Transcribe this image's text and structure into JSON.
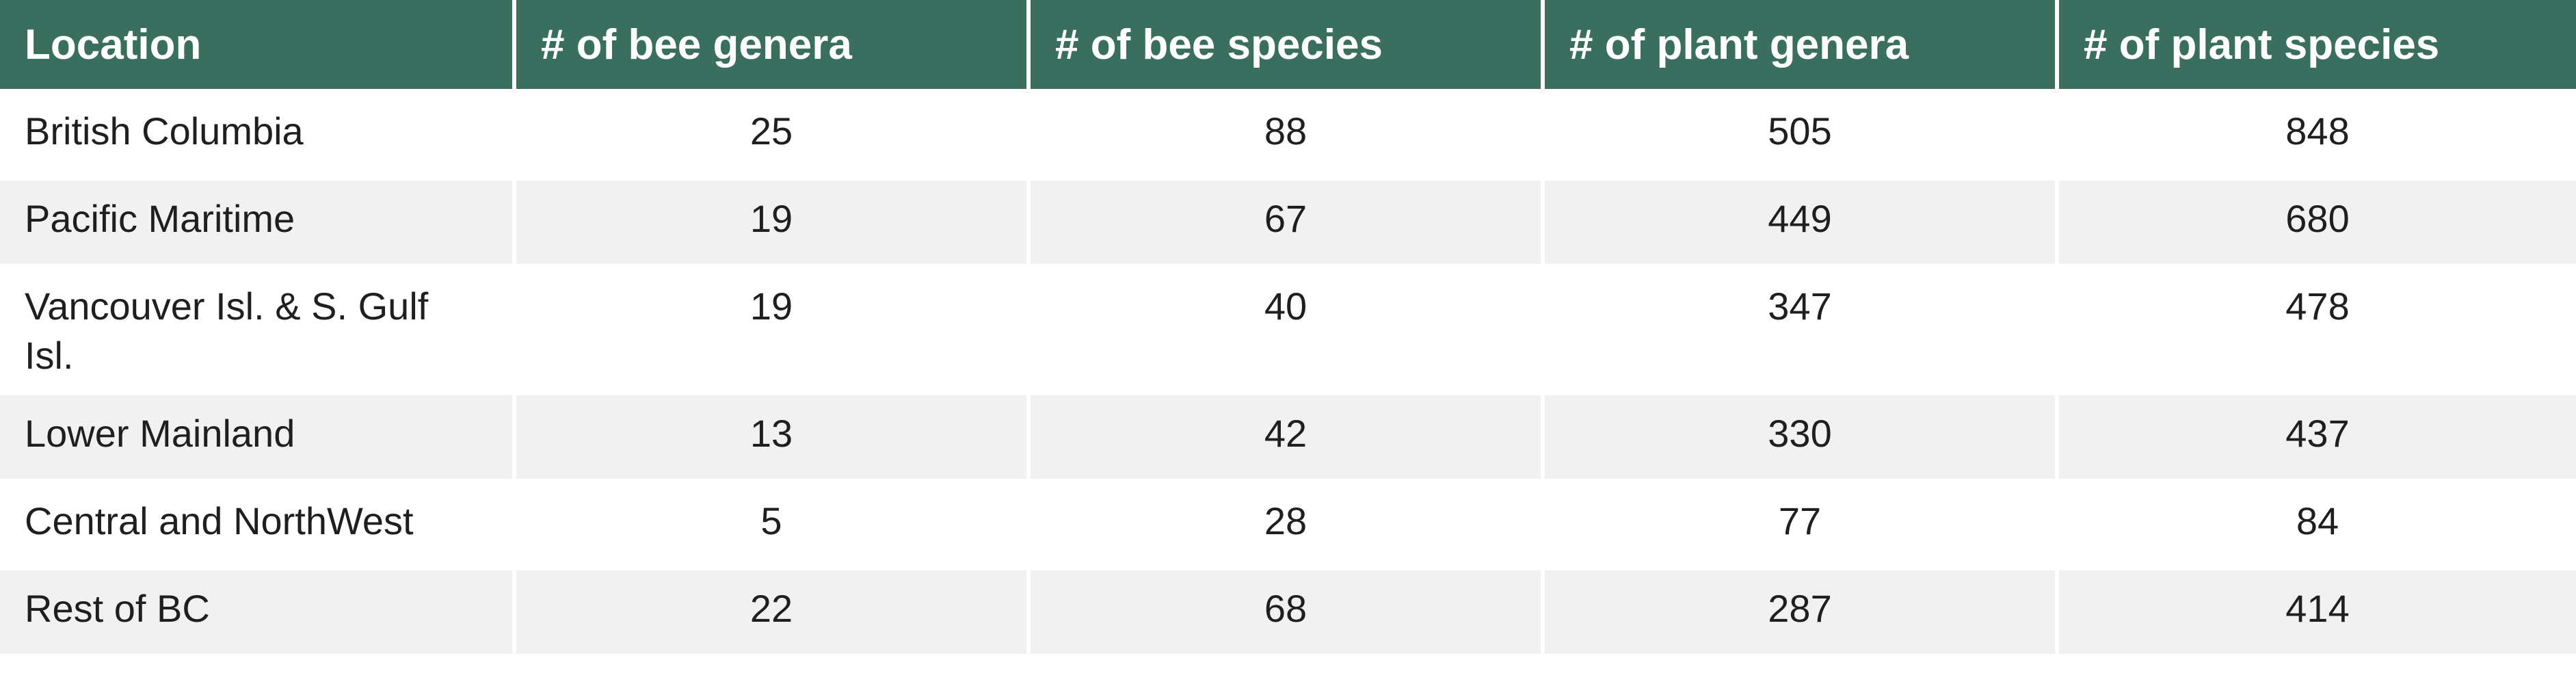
{
  "table": {
    "headers": [
      "Location",
      "# of bee genera",
      "# of bee species",
      "# of plant genera",
      "# of plant species"
    ],
    "rows": [
      [
        "British Columbia",
        "25",
        "88",
        "505",
        "848"
      ],
      [
        "Pacific Maritime",
        "19",
        "67",
        "449",
        "680"
      ],
      [
        "Vancouver Isl. & S. Gulf Isl.",
        "19",
        "40",
        "347",
        "478"
      ],
      [
        "Lower Mainland",
        "13",
        "42",
        "330",
        "437"
      ],
      [
        "Central and NorthWest",
        "5",
        "28",
        "77",
        "84"
      ],
      [
        "Rest of BC",
        "22",
        "68",
        "287",
        "414"
      ]
    ]
  },
  "colors": {
    "header_bg": "#3a6f60",
    "header_text": "#ffffff",
    "row_alt_bg": "#f1f1f1",
    "row_bg": "#ffffff"
  }
}
